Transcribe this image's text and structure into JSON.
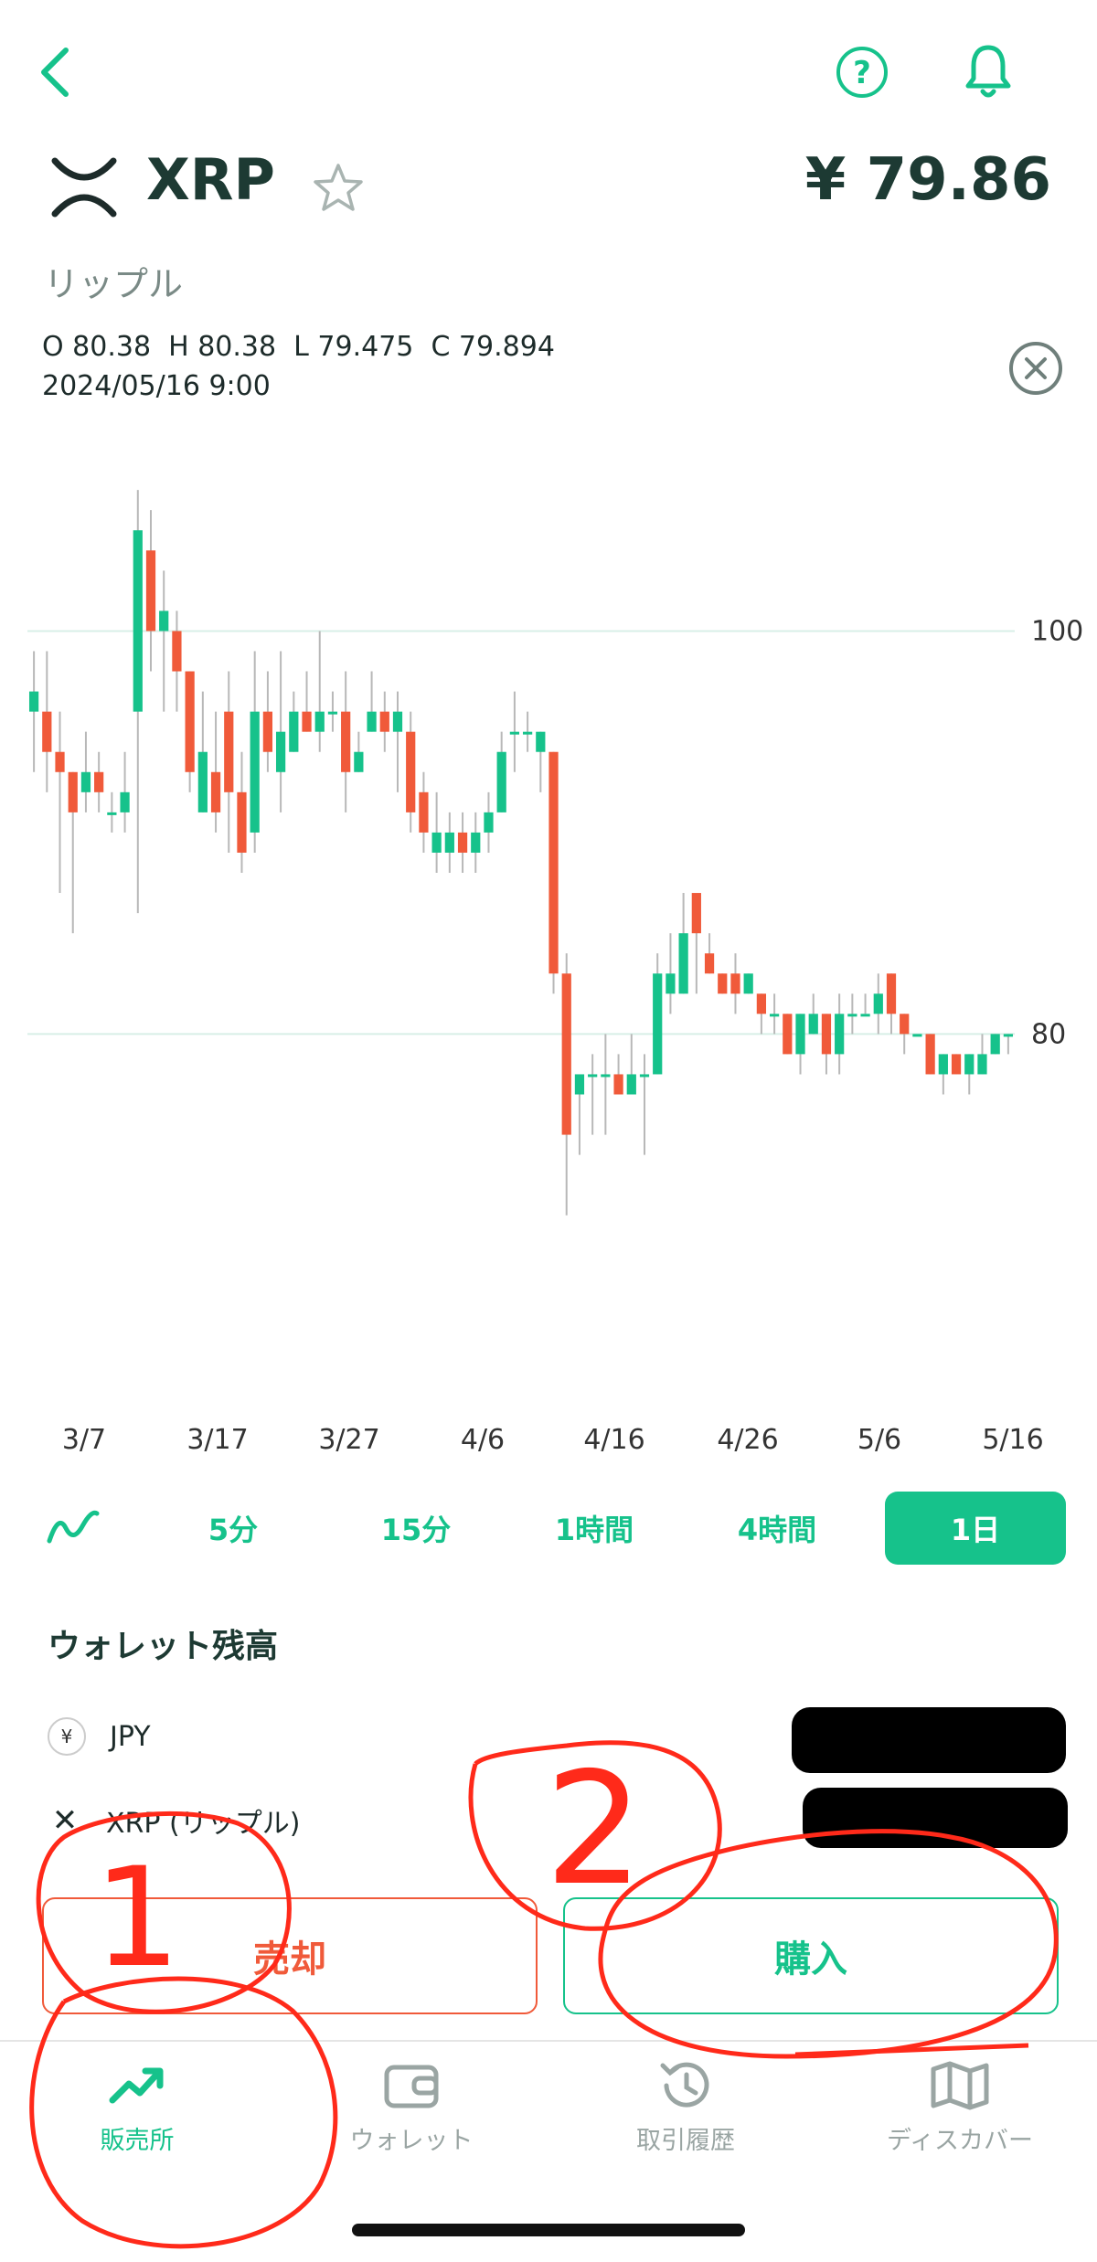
{
  "header": {
    "back_icon": "chevron-left-icon",
    "help_icon": "question-circle-icon",
    "bell_icon": "bell-icon"
  },
  "coin": {
    "symbol": "XRP",
    "name_ja": "リップル",
    "price": "¥ 79.86",
    "star_icon": "star-outline-icon"
  },
  "ohlc": {
    "text": "O 80.38  H 80.38  L 79.475  C 79.894",
    "date": "2024/05/16 9:00"
  },
  "chart_data": {
    "type": "candlestick",
    "y_ticks": [
      "100",
      "80"
    ],
    "x_ticks": [
      "3/7",
      "3/17",
      "3/27",
      "4/6",
      "4/16",
      "4/26",
      "5/6",
      "5/16"
    ],
    "ylim": [
      66,
      110
    ],
    "candles": [
      [
        96,
        97,
        99,
        93
      ],
      [
        96,
        94,
        99,
        92
      ],
      [
        94,
        93,
        96,
        87
      ],
      [
        93,
        91,
        93,
        85
      ],
      [
        92,
        93,
        95,
        91
      ],
      [
        93,
        92,
        94,
        91
      ],
      [
        91,
        91,
        92,
        90
      ],
      [
        91,
        92,
        94,
        90
      ],
      [
        96,
        105,
        107,
        86
      ],
      [
        104,
        100,
        106,
        98
      ],
      [
        100,
        101,
        103,
        96
      ],
      [
        100,
        98,
        101,
        96
      ],
      [
        98,
        93,
        98,
        92
      ],
      [
        91,
        94,
        97,
        91
      ],
      [
        93,
        91,
        96,
        90
      ],
      [
        96,
        92,
        98,
        89
      ],
      [
        92,
        89,
        94,
        88
      ],
      [
        90,
        96,
        99,
        89
      ],
      [
        96,
        94,
        98,
        93
      ],
      [
        93,
        95,
        99,
        91
      ],
      [
        94,
        96,
        97,
        94
      ],
      [
        96,
        95,
        98,
        95
      ],
      [
        95,
        96,
        100,
        94
      ],
      [
        96,
        96,
        97,
        95
      ],
      [
        96,
        93,
        98,
        91
      ],
      [
        93,
        94,
        95,
        93
      ],
      [
        95,
        96,
        98,
        95
      ],
      [
        96,
        95,
        97,
        94
      ],
      [
        95,
        96,
        97,
        92
      ],
      [
        95,
        91,
        96,
        90
      ],
      [
        92,
        90,
        93,
        89
      ],
      [
        89,
        90,
        92,
        88
      ],
      [
        89,
        90,
        91,
        88
      ],
      [
        90,
        89,
        91,
        88
      ],
      [
        89,
        90,
        91,
        88
      ],
      [
        90,
        91,
        92,
        89
      ],
      [
        91,
        94,
        95,
        91
      ],
      [
        95,
        95,
        97,
        93
      ],
      [
        95,
        95,
        96,
        94
      ],
      [
        94,
        95,
        95,
        92
      ],
      [
        94,
        83,
        94,
        82
      ],
      [
        83,
        75,
        84,
        71
      ],
      [
        77,
        78,
        78,
        74
      ],
      [
        78,
        78,
        79,
        75
      ],
      [
        78,
        78,
        80,
        75
      ],
      [
        78,
        77,
        79,
        77
      ],
      [
        77,
        78,
        80,
        77
      ],
      [
        78,
        78,
        79,
        74
      ],
      [
        78,
        83,
        84,
        78
      ],
      [
        82,
        83,
        85,
        81
      ],
      [
        82,
        85,
        87,
        82
      ],
      [
        87,
        85,
        86,
        82
      ],
      [
        84,
        83,
        85,
        83
      ],
      [
        83,
        82,
        83,
        82
      ],
      [
        83,
        82,
        84,
        81
      ],
      [
        82,
        83,
        83,
        82
      ],
      [
        82,
        81,
        82,
        80
      ],
      [
        81,
        81,
        82,
        80
      ],
      [
        81,
        79,
        81,
        79
      ],
      [
        79,
        81,
        81,
        78
      ],
      [
        80,
        81,
        82,
        80
      ],
      [
        81,
        79,
        81,
        78
      ],
      [
        79,
        81,
        82,
        78
      ],
      [
        81,
        81,
        82,
        80
      ],
      [
        81,
        81,
        82,
        81
      ],
      [
        81,
        82,
        83,
        80
      ],
      [
        83,
        81,
        83,
        80
      ],
      [
        81,
        80,
        81,
        79
      ],
      [
        80,
        80,
        80,
        80
      ],
      [
        80,
        78,
        80,
        78
      ],
      [
        78,
        79,
        79,
        77
      ],
      [
        79,
        78,
        79,
        78
      ],
      [
        78,
        79,
        79,
        77
      ],
      [
        78,
        79,
        80,
        78
      ],
      [
        79,
        80,
        80,
        79
      ],
      [
        80,
        80,
        80,
        79
      ]
    ]
  },
  "timeframes": {
    "chart_type_icon": "line-chart-icon",
    "items": [
      "5分",
      "15分",
      "1時間",
      "4時間",
      "1日"
    ],
    "active": "1日"
  },
  "wallet": {
    "title": "ウォレット残高",
    "rows": [
      {
        "badge": "¥",
        "label": "JPY"
      },
      {
        "badge": "✕",
        "label": "XRP (リップル)"
      }
    ]
  },
  "actions": {
    "sell": "売却",
    "buy": "購入"
  },
  "tabs": [
    {
      "label": "販売所",
      "icon": "trend-up-icon",
      "active": true
    },
    {
      "label": "ウォレット",
      "icon": "wallet-icon",
      "active": false
    },
    {
      "label": "取引履歴",
      "icon": "history-icon",
      "active": false
    },
    {
      "label": "ディスカバー",
      "icon": "map-icon",
      "active": false
    }
  ],
  "annotations": {
    "labels": [
      "1",
      "2"
    ]
  },
  "colors": {
    "accent": "#16c28b",
    "up": "#16c28b",
    "down": "#f05a3a",
    "annotation": "#ff2a1a"
  }
}
